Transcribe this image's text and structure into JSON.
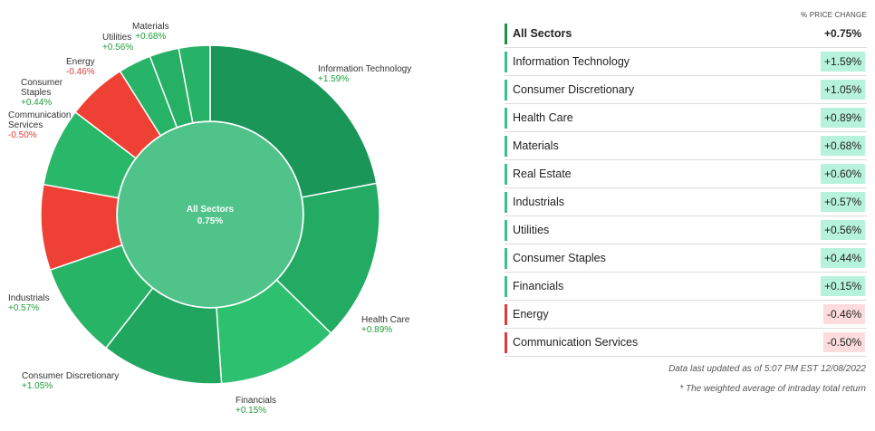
{
  "header": {
    "change_label": "% PRICE CHANGE"
  },
  "center": {
    "title": "All Sectors",
    "value": "0.75%"
  },
  "colors": {
    "positive_fill": "#1fb868",
    "negative_fill": "#ef4035",
    "positive_text": "#1f9d3a",
    "negative_text": "#e03b36",
    "center_fill": "#4fc38a",
    "pos_badge": "#b7f2dc",
    "neg_badge": "#fcdcdc"
  },
  "chart_data": {
    "type": "pie",
    "subtype": "donut",
    "title": "",
    "center_label": "All Sectors",
    "center_value": 0.75,
    "units": "% price change",
    "slices": [
      {
        "name": "Information Technology",
        "change": 1.59,
        "change_label": "+1.59%",
        "share": 0.2
      },
      {
        "name": "Health Care",
        "change": 0.89,
        "change_label": "+0.89%",
        "share": 0.139
      },
      {
        "name": "Financials",
        "change": 0.15,
        "change_label": "+0.15%",
        "share": 0.105
      },
      {
        "name": "Consumer Discretionary",
        "change": 1.05,
        "change_label": "+1.05%",
        "share": 0.1055
      },
      {
        "name": "Industrials",
        "change": 0.57,
        "change_label": "+0.57%",
        "share": 0.083
      },
      {
        "name": "Communication Services",
        "change": -0.5,
        "change_label": "-0.50%",
        "share": 0.074
      },
      {
        "name": "Consumer Staples",
        "change": 0.44,
        "change_label": "+0.44%",
        "share": 0.068
      },
      {
        "name": "Energy",
        "change": -0.46,
        "change_label": "-0.46%",
        "share": 0.052
      },
      {
        "name": "Utilities",
        "change": 0.56,
        "change_label": "+0.56%",
        "share": 0.0285
      },
      {
        "name": "Materials",
        "change": 0.68,
        "change_label": "+0.68%",
        "share": 0.0255
      },
      {
        "name": "Real Estate",
        "change": 0.6,
        "change_label": "+0.60%",
        "share": 0.027
      }
    ]
  },
  "labels": {
    "it": {
      "name": "Information Technology",
      "change": "+1.59%"
    },
    "hc": {
      "name": "Health Care",
      "change": "+0.89%"
    },
    "fin": {
      "name": "Financials",
      "change": "+0.15%"
    },
    "cd": {
      "name": "Consumer Discretionary",
      "change": "+1.05%"
    },
    "ind": {
      "name": "Industrials",
      "change": "+0.57%"
    },
    "cs": {
      "name1": "Communication",
      "name2": "Services",
      "change": "-0.50%"
    },
    "stap": {
      "name1": "Consumer",
      "name2": "Staples",
      "change": "+0.44%"
    },
    "en": {
      "name": "Energy",
      "change": "-0.46%"
    },
    "ut": {
      "name": "Utilities",
      "change": "+0.56%"
    },
    "mat": {
      "name": "Materials",
      "change": "+0.68%"
    }
  },
  "table": {
    "rows": [
      {
        "name": "All Sectors",
        "value": "+0.75%",
        "sign": "pos"
      },
      {
        "name": "Information Technology",
        "value": "+1.59%",
        "sign": "pos"
      },
      {
        "name": "Consumer Discretionary",
        "value": "+1.05%",
        "sign": "pos"
      },
      {
        "name": "Health Care",
        "value": "+0.89%",
        "sign": "pos"
      },
      {
        "name": "Materials",
        "value": "+0.68%",
        "sign": "pos"
      },
      {
        "name": "Real Estate",
        "value": "+0.60%",
        "sign": "pos"
      },
      {
        "name": "Industrials",
        "value": "+0.57%",
        "sign": "pos"
      },
      {
        "name": "Utilities",
        "value": "+0.56%",
        "sign": "pos"
      },
      {
        "name": "Consumer Staples",
        "value": "+0.44%",
        "sign": "pos"
      },
      {
        "name": "Financials",
        "value": "+0.15%",
        "sign": "pos"
      },
      {
        "name": "Energy",
        "value": "-0.46%",
        "sign": "neg"
      },
      {
        "name": "Communication Services",
        "value": "-0.50%",
        "sign": "neg"
      }
    ]
  },
  "footer": {
    "updated": "Data last updated as of 5:07 PM EST 12/08/2022",
    "note": "* The weighted average of intraday total return"
  }
}
